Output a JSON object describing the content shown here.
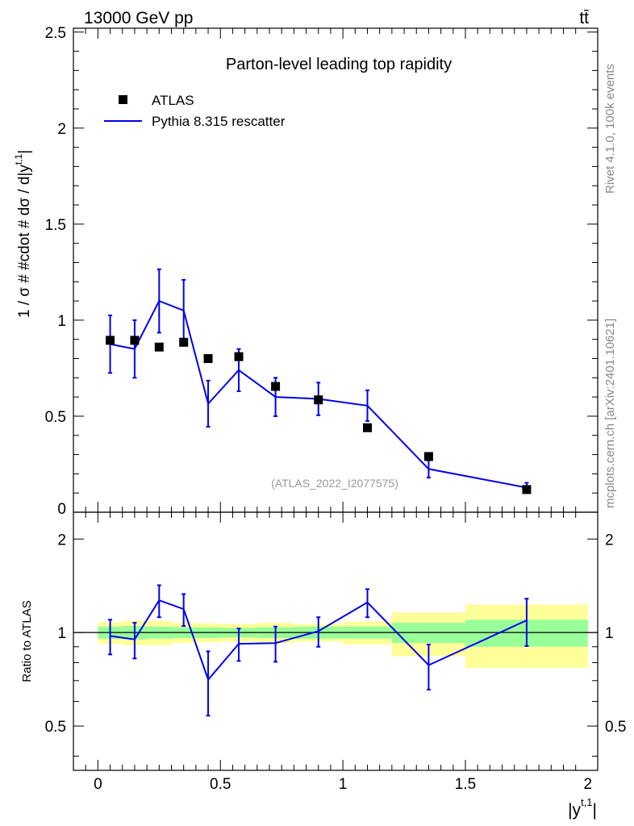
{
  "header": {
    "energy_label": "13000 GeV pp",
    "process_label": "tt̄"
  },
  "side_labels": {
    "rivet": "Rivet 4.1.0,  100k events",
    "mcplots": "mcplots.cern.ch [arXiv:2401.10621]"
  },
  "colors": {
    "mc": "#0000ee",
    "data": "#000000",
    "band_inner": "#99ff99",
    "band_outer": "#ffff99"
  },
  "chart_data": [
    {
      "type": "line",
      "title": "Parton-level leading top rapidity",
      "xlabel": "",
      "ylabel": "1 / σ # #cdot # dσ / d|y^{t,1}|",
      "ylabel_parts": {
        "main": "1 / σ # #cdot # dσ / d|y",
        "sup": "t,1",
        "end": "|"
      },
      "xlim": [
        -0.1,
        2.04
      ],
      "ylim": [
        0,
        2.52
      ],
      "yticks": [
        0,
        0.5,
        1,
        1.5,
        2,
        2.5
      ],
      "ytick_labels": [
        "0",
        "0.5",
        "1",
        "1.5",
        "2",
        "2.5"
      ],
      "watermark": "(ATLAS_2022_I2077575)",
      "legend": {
        "placement": "top-left",
        "entries": [
          "ATLAS",
          "Pythia 8.315 rescatter"
        ]
      },
      "data_series": {
        "name": "ATLAS",
        "x": [
          0.05,
          0.15,
          0.25,
          0.35,
          0.45,
          0.575,
          0.725,
          0.9,
          1.1,
          1.35,
          1.75
        ],
        "y": [
          0.895,
          0.895,
          0.86,
          0.885,
          0.8,
          0.81,
          0.655,
          0.585,
          0.44,
          0.29,
          0.118
        ]
      },
      "mc_series": {
        "name": "Pythia 8.315 rescatter",
        "bin_edges": [
          0,
          0.1,
          0.2,
          0.3,
          0.4,
          0.5,
          0.65,
          0.8,
          1.0,
          1.2,
          1.5,
          2.0
        ],
        "x": [
          0.05,
          0.15,
          0.25,
          0.35,
          0.45,
          0.575,
          0.725,
          0.9,
          1.1,
          1.35,
          1.75
        ],
        "y": [
          0.875,
          0.85,
          1.1,
          1.05,
          0.565,
          0.74,
          0.6,
          0.59,
          0.555,
          0.225,
          0.128
        ],
        "yerr": [
          0.15,
          0.15,
          0.165,
          0.16,
          0.12,
          0.11,
          0.1,
          0.085,
          0.08,
          0.045,
          0.025
        ]
      }
    },
    {
      "type": "line",
      "title": "",
      "xlabel": "|y^{t,1}|",
      "xlabel_parts": {
        "main": "|y",
        "sup": "t,1",
        "end": "|"
      },
      "ylabel": "Ratio to ATLAS",
      "xlim": [
        -0.1,
        2.04
      ],
      "ylim": [
        0.36,
        2.44
      ],
      "xticks": [
        0,
        0.5,
        1,
        1.5,
        2
      ],
      "xtick_labels": [
        "0",
        "0.5",
        "1",
        "1.5",
        "2"
      ],
      "yticks": [
        0.5,
        1,
        2
      ],
      "ytick_labels": [
        "0.5",
        "1",
        "2"
      ],
      "reference_line": 1,
      "bands": {
        "bin_edges": [
          0,
          0.1,
          0.2,
          0.3,
          0.4,
          0.5,
          0.65,
          0.8,
          1.0,
          1.2,
          1.5,
          2.0
        ],
        "inner_lo": [
          0.955,
          0.95,
          0.955,
          0.96,
          0.96,
          0.965,
          0.96,
          0.955,
          0.955,
          0.925,
          0.9
        ],
        "inner_hi": [
          1.045,
          1.05,
          1.045,
          1.04,
          1.04,
          1.035,
          1.04,
          1.045,
          1.045,
          1.075,
          1.1
        ],
        "outer_lo": [
          0.92,
          0.91,
          0.91,
          0.925,
          0.93,
          0.935,
          0.925,
          0.935,
          0.915,
          0.84,
          0.77
        ],
        "outer_hi": [
          1.08,
          1.09,
          1.09,
          1.075,
          1.07,
          1.065,
          1.075,
          1.065,
          1.085,
          1.16,
          1.23
        ]
      },
      "ratio_series": {
        "name": "Pythia 8.315 rescatter / ATLAS",
        "x": [
          0.05,
          0.15,
          0.25,
          0.35,
          0.45,
          0.575,
          0.725,
          0.9,
          1.1,
          1.35,
          1.75
        ],
        "y": [
          0.975,
          0.95,
          1.27,
          1.19,
          0.705,
          0.92,
          0.925,
          1.01,
          1.25,
          0.785,
          1.095
        ],
        "yerr": [
          0.125,
          0.125,
          0.15,
          0.14,
          0.165,
          0.11,
          0.12,
          0.11,
          0.13,
          0.13,
          0.19
        ]
      }
    }
  ]
}
